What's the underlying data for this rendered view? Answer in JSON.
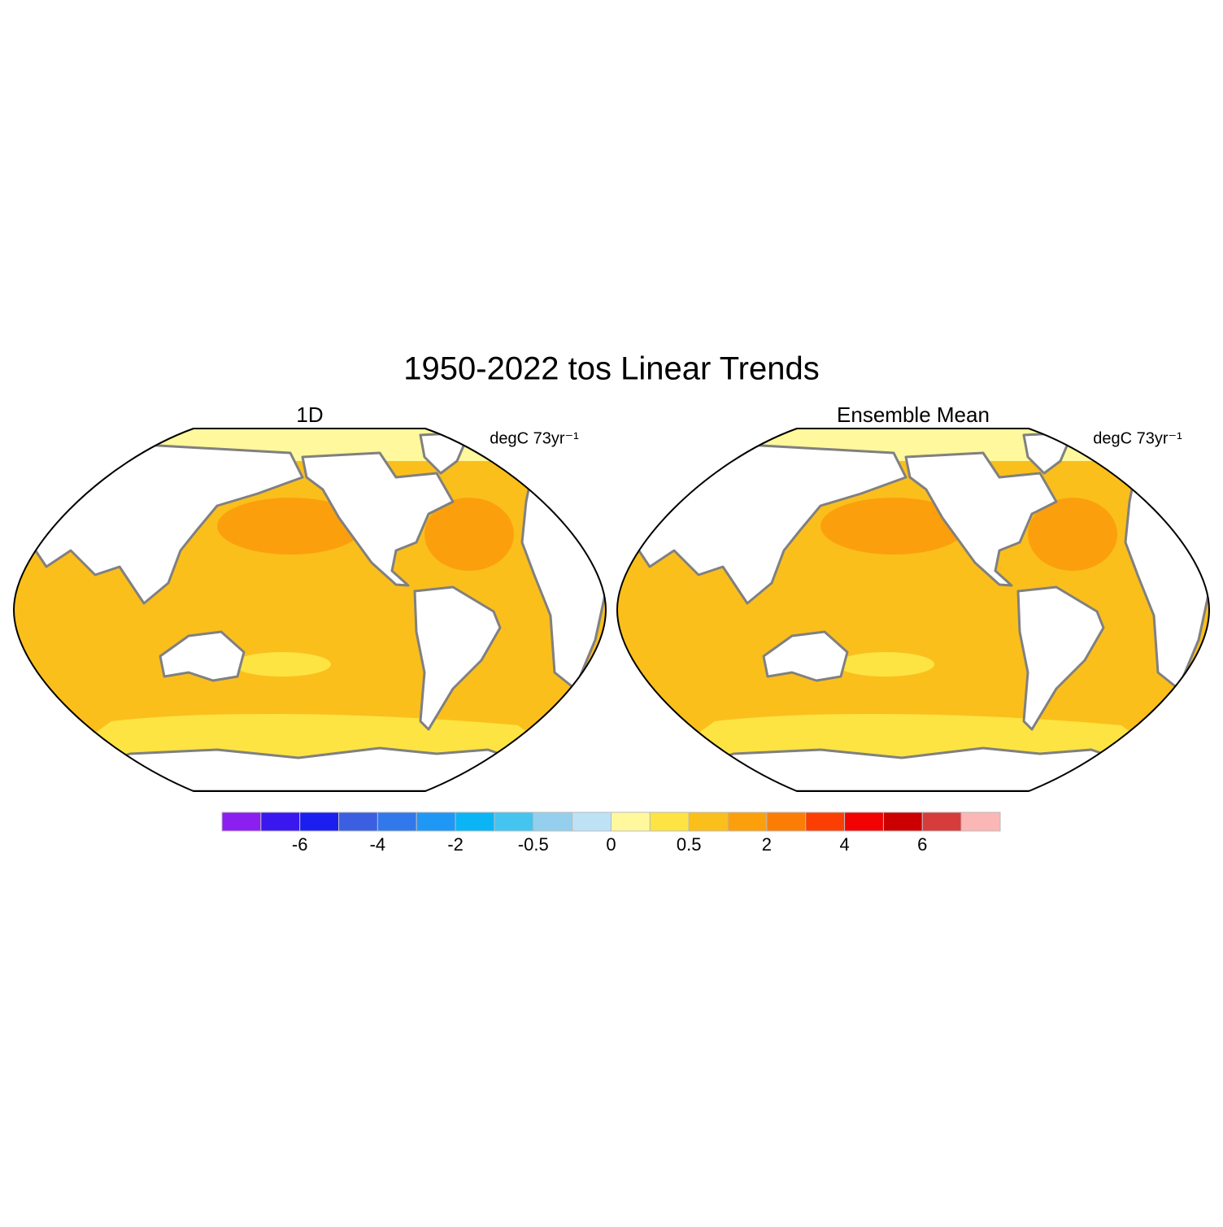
{
  "title": "1950-2022 tos Linear Trends",
  "panels": [
    {
      "title": "1D",
      "units": "degC 73yr⁻¹"
    },
    {
      "title": "Ensemble Mean",
      "units": "degC 73yr⁻¹"
    }
  ],
  "colorbar": {
    "colors": [
      "#8a1ff0",
      "#3a16ef",
      "#1a1eef",
      "#3b5fe0",
      "#3178eb",
      "#1f97f5",
      "#0bb4f5",
      "#45c4f0",
      "#95cfee",
      "#bde2f5",
      "#fff89c",
      "#fde442",
      "#fbbf1c",
      "#fba00c",
      "#fb7d06",
      "#fb3f04",
      "#f20202",
      "#cc0000",
      "#d63c3c",
      "#fbb6b6"
    ],
    "labels": [
      -6,
      -4,
      -2,
      -0.5,
      0,
      0.5,
      2,
      4,
      6
    ]
  }
}
